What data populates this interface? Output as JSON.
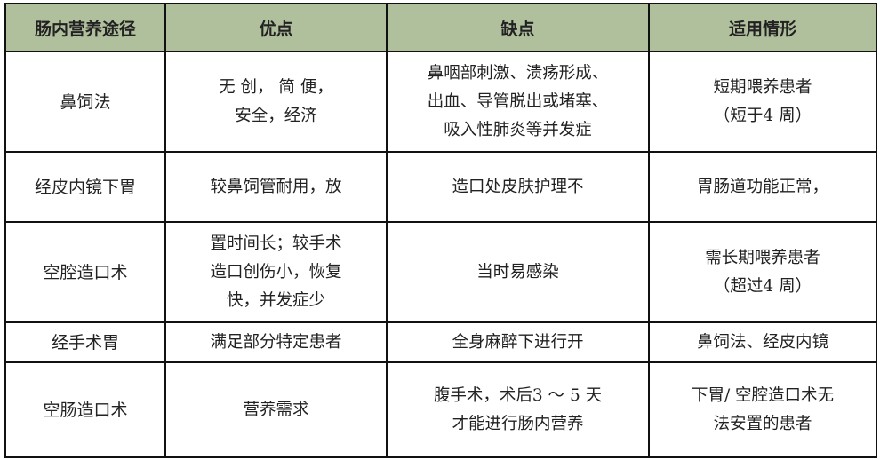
{
  "table": {
    "headers": [
      "肠内营养途径",
      "优点",
      "缺点",
      "适用情形"
    ],
    "rows": [
      {
        "route": "鼻饲法",
        "pros": [
          "无 创， 简 便，",
          "安全，经济"
        ],
        "cons": [
          "鼻咽部刺激、溃疡形成、",
          "出血、导管脱出或堵塞、",
          "吸入性肺炎等并发症"
        ],
        "use": [
          "短期喂养患者",
          "（短于4 周）"
        ]
      },
      {
        "route": "经皮内镜下胃",
        "pros": [
          "较鼻饲管耐用，放"
        ],
        "cons": [
          "造口处皮肤护理不"
        ],
        "use": [
          "胃肠道功能正常，"
        ]
      },
      {
        "route": "空腔造口术",
        "pros": [
          "置时间长；较手术",
          "造口创伤小，恢复",
          "快，并发症少"
        ],
        "cons": [
          "当时易感染"
        ],
        "use": [
          "需长期喂养患者",
          "（超过4 周）"
        ]
      },
      {
        "route": "经手术胃",
        "pros": [
          "满足部分特定患者"
        ],
        "cons": [
          "全身麻醉下进行开"
        ],
        "use": [
          "鼻饲法、经皮内镜"
        ]
      },
      {
        "route": "空肠造口术",
        "pros": [
          "营养需求"
        ],
        "cons": [
          "腹手术，术后3 ～ 5 天",
          "才能进行肠内营养"
        ],
        "use": [
          "下胃/ 空腔造口术无",
          "法安置的患者"
        ]
      }
    ]
  },
  "colors": {
    "header_bg": "#b0bf9c",
    "border": "#111111"
  }
}
